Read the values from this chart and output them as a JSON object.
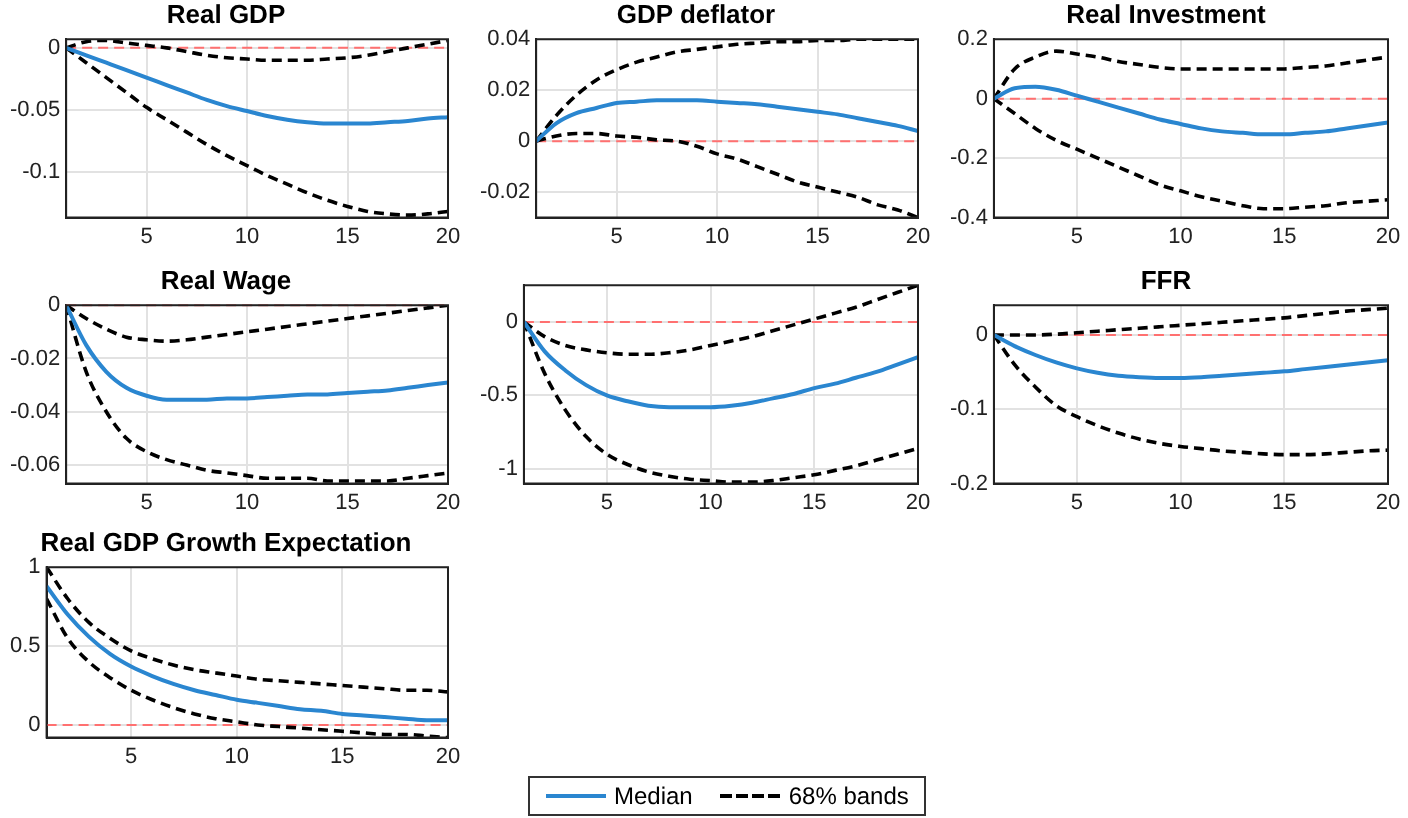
{
  "chart_data": [
    {
      "type": "line",
      "title": "Real GDP",
      "x": [
        1,
        2,
        3,
        4,
        5,
        6,
        7,
        8,
        9,
        10,
        11,
        12,
        13,
        14,
        15,
        16,
        17,
        18,
        19,
        20
      ],
      "xlim": [
        1,
        20
      ],
      "xticks": [
        5,
        10,
        15,
        20
      ],
      "ylim": [
        -0.137,
        0.007
      ],
      "yticks": [
        -0.1,
        -0.05,
        0
      ],
      "grid": true,
      "marker": "none",
      "ref_lines": [
        {
          "axis": "y",
          "value": 0,
          "color": "#ff7070",
          "line_style": "dashed"
        }
      ],
      "series": [
        {
          "color": "#2a86d0",
          "line_style": "solid",
          "values": [
            0,
            -0.006,
            -0.012,
            -0.018,
            -0.024,
            -0.03,
            -0.036,
            -0.042,
            -0.047,
            -0.051,
            -0.055,
            -0.058,
            -0.06,
            -0.061,
            -0.061,
            -0.061,
            -0.06,
            -0.059,
            -0.057,
            -0.056
          ]
        },
        {
          "color": "#000000",
          "line_style": "dashed",
          "values": [
            0,
            0.005,
            0.006,
            0.004,
            0.002,
            0,
            -0.003,
            -0.006,
            -0.008,
            -0.009,
            -0.01,
            -0.01,
            -0.01,
            -0.009,
            -0.008,
            -0.006,
            -0.003,
            0,
            0.003,
            0.006
          ]
        },
        {
          "color": "#000000",
          "line_style": "dashed",
          "values": [
            0,
            -0.012,
            -0.024,
            -0.036,
            -0.048,
            -0.058,
            -0.068,
            -0.078,
            -0.087,
            -0.095,
            -0.103,
            -0.11,
            -0.117,
            -0.123,
            -0.128,
            -0.132,
            -0.134,
            -0.135,
            -0.134,
            -0.132
          ]
        }
      ]
    },
    {
      "type": "line",
      "title": "GDP deflator",
      "x": [
        1,
        2,
        3,
        4,
        5,
        6,
        7,
        8,
        9,
        10,
        11,
        12,
        13,
        14,
        15,
        16,
        17,
        18,
        19,
        20
      ],
      "xlim": [
        1,
        20
      ],
      "xticks": [
        5,
        10,
        15,
        20
      ],
      "ylim": [
        -0.03,
        0.04
      ],
      "yticks": [
        -0.02,
        0,
        0.02,
        0.04
      ],
      "grid": true,
      "marker": "none",
      "ref_lines": [
        {
          "axis": "y",
          "value": 0,
          "color": "#ff7070",
          "line_style": "dashed"
        }
      ],
      "series": [
        {
          "color": "#2a86d0",
          "line_style": "solid",
          "values": [
            0,
            0.007,
            0.011,
            0.013,
            0.015,
            0.0155,
            0.016,
            0.016,
            0.016,
            0.0155,
            0.015,
            0.0145,
            0.0135,
            0.0125,
            0.0115,
            0.0105,
            0.009,
            0.0075,
            0.006,
            0.004
          ]
        },
        {
          "color": "#000000",
          "line_style": "dashed",
          "values": [
            0,
            0.01,
            0.018,
            0.024,
            0.028,
            0.031,
            0.033,
            0.035,
            0.036,
            0.037,
            0.038,
            0.0385,
            0.039,
            0.039,
            0.0395,
            0.0395,
            0.04,
            0.04,
            0.04,
            0.04
          ]
        },
        {
          "color": "#000000",
          "line_style": "dashed",
          "values": [
            0,
            0.002,
            0.003,
            0.003,
            0.002,
            0.0015,
            0.0005,
            0,
            -0.002,
            -0.005,
            -0.007,
            -0.01,
            -0.013,
            -0.016,
            -0.018,
            -0.02,
            -0.022,
            -0.025,
            -0.027,
            -0.03
          ]
        }
      ]
    },
    {
      "type": "line",
      "title": "Real Investment",
      "x": [
        1,
        2,
        3,
        4,
        5,
        6,
        7,
        8,
        9,
        10,
        11,
        12,
        13,
        14,
        15,
        16,
        17,
        18,
        19,
        20
      ],
      "xlim": [
        1,
        20
      ],
      "xticks": [
        5,
        10,
        15,
        20
      ],
      "ylim": [
        -0.4,
        0.2
      ],
      "yticks": [
        -0.4,
        -0.2,
        0,
        0.2
      ],
      "grid": true,
      "marker": "none",
      "ref_lines": [
        {
          "axis": "y",
          "value": 0,
          "color": "#ff7070",
          "line_style": "dashed"
        }
      ],
      "series": [
        {
          "color": "#2a86d0",
          "line_style": "solid",
          "values": [
            0,
            0.035,
            0.04,
            0.03,
            0.01,
            -0.01,
            -0.03,
            -0.05,
            -0.07,
            -0.085,
            -0.1,
            -0.11,
            -0.115,
            -0.12,
            -0.12,
            -0.115,
            -0.11,
            -0.1,
            -0.09,
            -0.08
          ]
        },
        {
          "color": "#000000",
          "line_style": "dashed",
          "values": [
            0,
            0.1,
            0.14,
            0.16,
            0.15,
            0.14,
            0.125,
            0.115,
            0.105,
            0.1,
            0.1,
            0.1,
            0.1,
            0.1,
            0.1,
            0.105,
            0.11,
            0.12,
            0.13,
            0.14
          ]
        },
        {
          "color": "#000000",
          "line_style": "dashed",
          "values": [
            0,
            -0.05,
            -0.1,
            -0.14,
            -0.17,
            -0.2,
            -0.23,
            -0.26,
            -0.29,
            -0.31,
            -0.33,
            -0.345,
            -0.36,
            -0.37,
            -0.37,
            -0.365,
            -0.36,
            -0.35,
            -0.345,
            -0.34
          ]
        }
      ]
    },
    {
      "type": "line",
      "title": "Real Wage",
      "x": [
        1,
        2,
        3,
        4,
        5,
        6,
        7,
        8,
        9,
        10,
        11,
        12,
        13,
        14,
        15,
        16,
        17,
        18,
        19,
        20
      ],
      "xlim": [
        1,
        20
      ],
      "xticks": [
        5,
        10,
        15,
        20
      ],
      "ylim": [
        -0.067,
        0
      ],
      "yticks": [
        -0.06,
        -0.04,
        -0.02,
        0
      ],
      "grid": true,
      "marker": "none",
      "ref_lines": [
        {
          "axis": "y",
          "value": 0,
          "color": "#ff7070",
          "line_style": "dashed"
        }
      ],
      "series": [
        {
          "color": "#2a86d0",
          "line_style": "solid",
          "values": [
            0,
            -0.015,
            -0.025,
            -0.031,
            -0.034,
            -0.0355,
            -0.0355,
            -0.0355,
            -0.035,
            -0.035,
            -0.0345,
            -0.034,
            -0.0335,
            -0.0335,
            -0.033,
            -0.0325,
            -0.032,
            -0.031,
            -0.03,
            -0.029
          ]
        },
        {
          "color": "#000000",
          "line_style": "dashed",
          "values": [
            0,
            -0.005,
            -0.009,
            -0.012,
            -0.013,
            -0.0135,
            -0.013,
            -0.012,
            -0.011,
            -0.01,
            -0.009,
            -0.008,
            -0.007,
            -0.006,
            -0.005,
            -0.004,
            -0.003,
            -0.002,
            -0.001,
            0
          ]
        },
        {
          "color": "#000000",
          "line_style": "dashed",
          "values": [
            0,
            -0.025,
            -0.04,
            -0.05,
            -0.055,
            -0.058,
            -0.06,
            -0.062,
            -0.063,
            -0.064,
            -0.065,
            -0.065,
            -0.065,
            -0.066,
            -0.066,
            -0.066,
            -0.066,
            -0.065,
            -0.064,
            -0.063
          ]
        }
      ]
    },
    {
      "type": "line",
      "x": [
        1,
        2,
        3,
        4,
        5,
        6,
        7,
        8,
        9,
        10,
        11,
        12,
        13,
        14,
        15,
        16,
        17,
        18,
        19,
        20
      ],
      "xlim": [
        1,
        20
      ],
      "xticks": [
        5,
        10,
        15,
        20
      ],
      "ylim": [
        -1.1,
        0.25
      ],
      "yticks": [
        -1,
        -0.5,
        0
      ],
      "grid": true,
      "marker": "none",
      "ref_lines": [
        {
          "axis": "y",
          "value": 0,
          "color": "#ff7070",
          "line_style": "dashed"
        }
      ],
      "series": [
        {
          "color": "#2a86d0",
          "line_style": "solid",
          "values": [
            0,
            -0.2,
            -0.33,
            -0.43,
            -0.5,
            -0.54,
            -0.57,
            -0.58,
            -0.58,
            -0.58,
            -0.57,
            -0.55,
            -0.52,
            -0.49,
            -0.45,
            -0.42,
            -0.38,
            -0.34,
            -0.29,
            -0.24
          ]
        },
        {
          "color": "#000000",
          "line_style": "dashed",
          "values": [
            0,
            -0.1,
            -0.16,
            -0.19,
            -0.21,
            -0.22,
            -0.22,
            -0.21,
            -0.19,
            -0.16,
            -0.13,
            -0.1,
            -0.06,
            -0.02,
            0.02,
            0.06,
            0.1,
            0.15,
            0.2,
            0.25
          ]
        },
        {
          "color": "#000000",
          "line_style": "dashed",
          "values": [
            0,
            -0.35,
            -0.6,
            -0.78,
            -0.9,
            -0.97,
            -1.02,
            -1.05,
            -1.07,
            -1.08,
            -1.09,
            -1.09,
            -1.08,
            -1.06,
            -1.04,
            -1.01,
            -0.98,
            -0.94,
            -0.9,
            -0.86
          ]
        }
      ]
    },
    {
      "type": "line",
      "title": "FFR",
      "x": [
        1,
        2,
        3,
        4,
        5,
        6,
        7,
        8,
        9,
        10,
        11,
        12,
        13,
        14,
        15,
        16,
        17,
        18,
        19,
        20
      ],
      "xlim": [
        1,
        20
      ],
      "xticks": [
        5,
        10,
        15,
        20
      ],
      "ylim": [
        -0.2,
        0.04
      ],
      "yticks": [
        -0.2,
        -0.1,
        0
      ],
      "grid": true,
      "marker": "none",
      "ref_lines": [
        {
          "axis": "y",
          "value": 0,
          "color": "#ff7070",
          "line_style": "dashed"
        }
      ],
      "series": [
        {
          "color": "#2a86d0",
          "line_style": "solid",
          "values": [
            0,
            -0.015,
            -0.027,
            -0.037,
            -0.045,
            -0.051,
            -0.055,
            -0.057,
            -0.058,
            -0.058,
            -0.057,
            -0.055,
            -0.053,
            -0.051,
            -0.049,
            -0.046,
            -0.043,
            -0.04,
            -0.037,
            -0.034
          ]
        },
        {
          "color": "#000000",
          "line_style": "dashed",
          "values": [
            0,
            0,
            0,
            0.001,
            0.003,
            0.005,
            0.007,
            0.009,
            0.011,
            0.013,
            0.015,
            0.017,
            0.019,
            0.021,
            0.023,
            0.026,
            0.029,
            0.032,
            0.034,
            0.036
          ]
        },
        {
          "color": "#000000",
          "line_style": "dashed",
          "values": [
            0,
            -0.04,
            -0.07,
            -0.095,
            -0.11,
            -0.122,
            -0.132,
            -0.14,
            -0.146,
            -0.15,
            -0.153,
            -0.156,
            -0.158,
            -0.16,
            -0.161,
            -0.161,
            -0.16,
            -0.158,
            -0.156,
            -0.155
          ]
        }
      ]
    },
    {
      "type": "line",
      "title": "Real GDP Growth Expectation",
      "x": [
        1,
        2,
        3,
        4,
        5,
        6,
        7,
        8,
        9,
        10,
        11,
        12,
        13,
        14,
        15,
        16,
        17,
        18,
        19,
        20
      ],
      "xlim": [
        1,
        20
      ],
      "xticks": [
        5,
        10,
        15,
        20
      ],
      "ylim": [
        -0.08,
        1
      ],
      "yticks": [
        0,
        0.5,
        1
      ],
      "grid": true,
      "marker": "none",
      "legend": "bottom",
      "ref_lines": [
        {
          "axis": "y",
          "value": 0,
          "color": "#ff7070",
          "line_style": "dashed"
        }
      ],
      "series": [
        {
          "name": "Median",
          "color": "#2a86d0",
          "line_style": "solid",
          "values": [
            0.88,
            0.7,
            0.56,
            0.45,
            0.37,
            0.31,
            0.26,
            0.22,
            0.19,
            0.16,
            0.14,
            0.12,
            0.1,
            0.09,
            0.07,
            0.06,
            0.05,
            0.04,
            0.03,
            0.03
          ]
        },
        {
          "name": "68% bands",
          "color": "#000000",
          "line_style": "dashed",
          "values": [
            1,
            0.8,
            0.65,
            0.55,
            0.47,
            0.42,
            0.38,
            0.35,
            0.33,
            0.31,
            0.29,
            0.28,
            0.27,
            0.26,
            0.25,
            0.24,
            0.23,
            0.22,
            0.22,
            0.21
          ]
        },
        {
          "color": "#000000",
          "line_style": "dashed",
          "values": [
            0.8,
            0.55,
            0.4,
            0.3,
            0.22,
            0.16,
            0.11,
            0.07,
            0.04,
            0.02,
            0,
            -0.01,
            -0.02,
            -0.03,
            -0.04,
            -0.05,
            -0.06,
            -0.06,
            -0.07,
            -0.08
          ]
        }
      ]
    }
  ]
}
